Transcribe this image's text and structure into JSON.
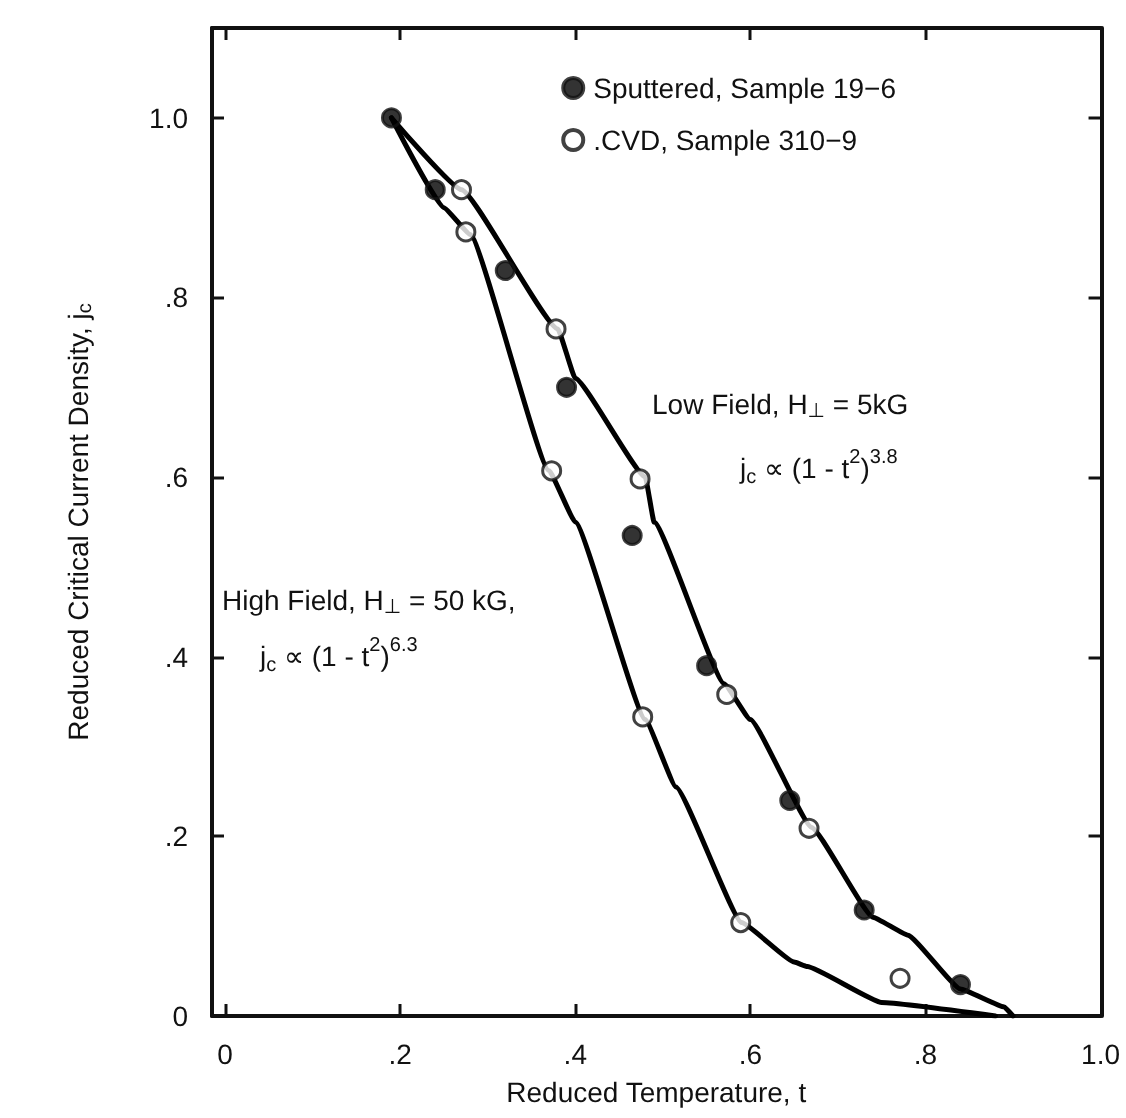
{
  "chart_data": {
    "type": "scatter",
    "xlabel": "Reduced Temperature, t",
    "ylabel": "Reduced Critical Current Density, j$_{c}$",
    "xlim": [
      -0.015,
      1.0
    ],
    "ylim": [
      0,
      1.1
    ],
    "xticks": [
      0,
      {
        "value": 0.2,
        "label": ".2"
      },
      {
        "value": 0.4,
        "label": ".4"
      },
      {
        "value": 0.6,
        "label": ".6"
      },
      {
        "value": 0.8,
        "label": ".8"
      },
      {
        "value": 1.0,
        "label": "1.0"
      }
    ],
    "yticks": [
      0,
      {
        "value": 0.2,
        "label": ".2"
      },
      {
        "value": 0.4,
        "label": ".4"
      },
      {
        "value": 0.6,
        "label": ".6"
      },
      {
        "value": 0.8,
        "label": ".8"
      },
      {
        "value": 1.0,
        "label": "1.0"
      }
    ],
    "grid": false,
    "legend": "top right",
    "marker": "circle",
    "series": [
      {
        "name": "Sputtered, Sample 19−6",
        "color": "#000000",
        "x": [
          0.19,
          0.24,
          0.32,
          0.39,
          0.465,
          0.55,
          0.645,
          0.73,
          0.84
        ],
        "values": [
          1.0,
          0.92,
          0.83,
          0.7,
          0.535,
          0.39,
          0.24,
          0.118,
          0.035
        ]
      },
      {
        "name": ".CVD, Sample 310−9",
        "color": "#ffffff",
        "x": [
          0.27,
          0.275,
          0.378,
          0.373,
          0.474,
          0.477,
          0.573,
          0.667,
          0.589,
          0.771
        ],
        "values": [
          0.92,
          0.873,
          0.765,
          0.607,
          0.598,
          0.333,
          0.358,
          0.209,
          0.104,
          0.042
        ]
      },
      {
        "type": "line",
        "color": "#000000",
        "marker": "none",
        "x": [
          0.19,
          0.27,
          0.38,
          0.4,
          0.48,
          0.49,
          0.57,
          0.6,
          0.67,
          0.74,
          0.78,
          0.84,
          0.89,
          0.9
        ],
        "values": [
          1.0,
          0.92,
          0.765,
          0.71,
          0.6,
          0.55,
          0.37,
          0.33,
          0.21,
          0.11,
          0.09,
          0.03,
          0.01,
          0
        ]
      },
      {
        "type": "line",
        "color": "#000000",
        "marker": "none",
        "x": [
          0.19,
          0.25,
          0.28,
          0.37,
          0.4,
          0.48,
          0.515,
          0.59,
          0.65,
          0.665,
          0.75,
          0.88
        ],
        "values": [
          1.0,
          0.9,
          0.87,
          0.607,
          0.55,
          0.33,
          0.255,
          0.104,
          0.06,
          0.055,
          0.015,
          0
        ]
      }
    ],
    "annotations": [
      "Low Field, H$_{⊥}$ = 5kG",
      "j$_{c}$ ∝ (1 - t$^{2}$)$^{3.8}$",
      "High Field, H$_{⊥}$ = 50 kG,",
      "j$_{c}$ ∝ (1 - t$^{2}$)$^{6.3}$"
    ]
  }
}
